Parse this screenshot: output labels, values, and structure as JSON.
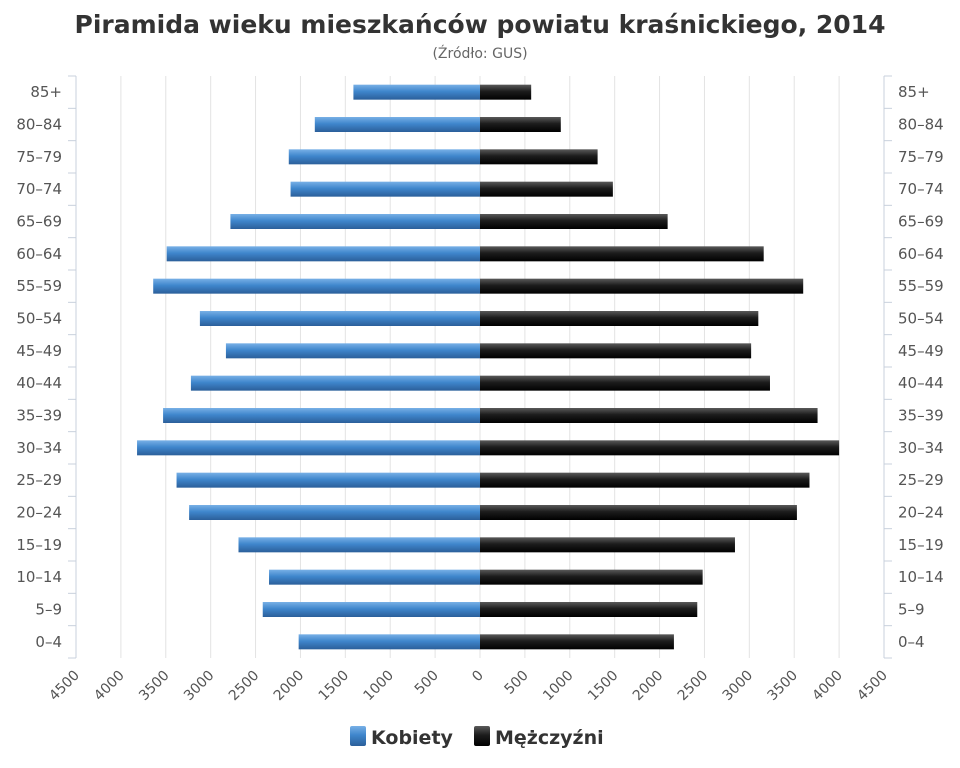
{
  "chart_data": {
    "type": "bar",
    "orientation": "horizontal-pyramid",
    "title": "Piramida wieku mieszkańców powiatu kraśnickiego, 2014",
    "subtitle": "(Źródło: GUS)",
    "categories": [
      "0–4",
      "5–9",
      "10–14",
      "15–19",
      "20–24",
      "25–29",
      "30–34",
      "35–39",
      "40–44",
      "45–49",
      "50–54",
      "55–59",
      "60–64",
      "65–69",
      "70–74",
      "75–79",
      "80–84",
      "85+"
    ],
    "series": [
      {
        "name": "Kobiety",
        "side": "left",
        "color": "#4a89c8",
        "values": [
          2020,
          2420,
          2350,
          2690,
          3240,
          3380,
          3820,
          3530,
          3220,
          2830,
          3120,
          3640,
          3490,
          2780,
          2110,
          2130,
          1840,
          1410
        ]
      },
      {
        "name": "Mężczyźni",
        "side": "right",
        "color": "#1a1a1a",
        "values": [
          2160,
          2420,
          2480,
          2840,
          3530,
          3670,
          4000,
          3760,
          3230,
          3020,
          3100,
          3600,
          3160,
          2090,
          1480,
          1310,
          900,
          570
        ]
      }
    ],
    "xlim": [
      -4500,
      4500
    ],
    "xticks": [
      "4500",
      "4000",
      "3500",
      "3000",
      "2500",
      "2000",
      "1500",
      "1000",
      "500",
      "0",
      "500",
      "1000",
      "1500",
      "2000",
      "2500",
      "3000",
      "3500",
      "4000",
      "4500"
    ],
    "grid": true,
    "legend": "bottom-center"
  }
}
